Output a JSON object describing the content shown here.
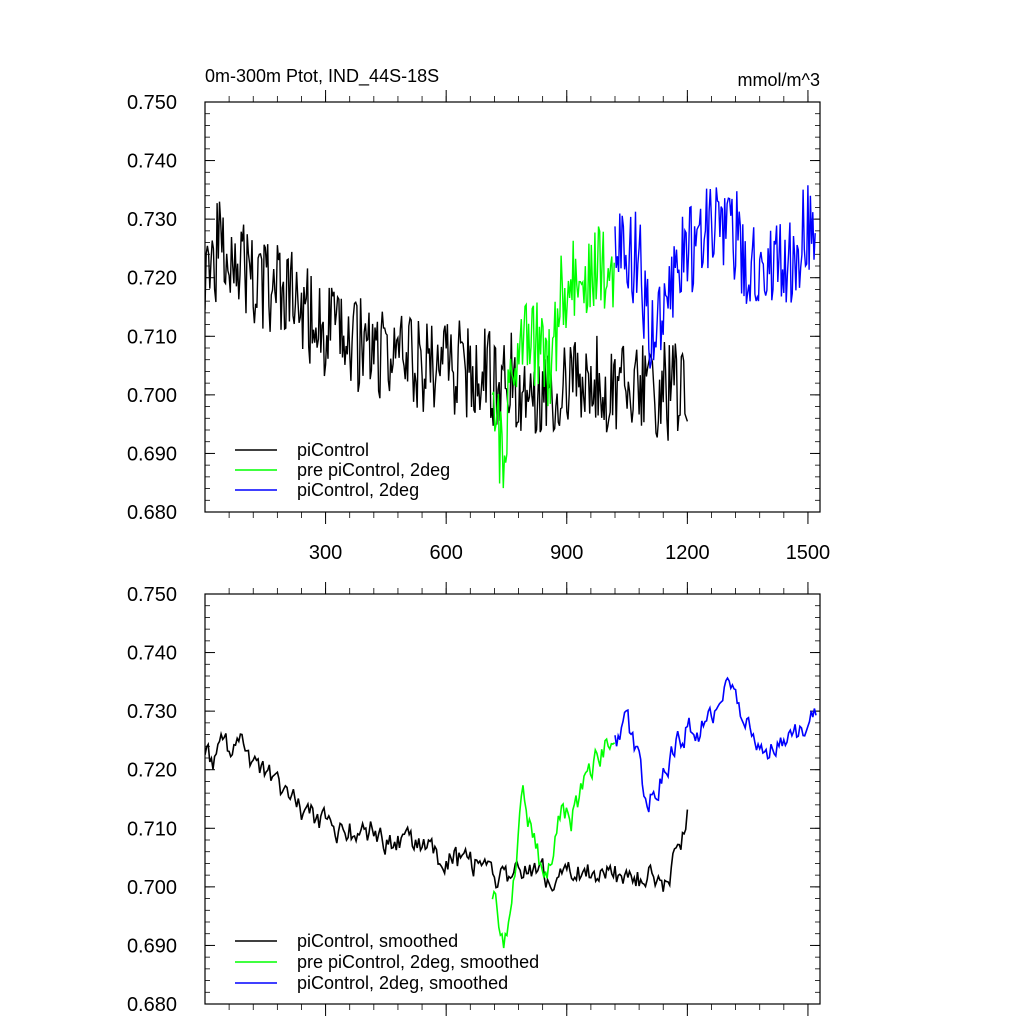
{
  "chart_data": [
    {
      "type": "line",
      "title": "0m-300m Ptot, IND_44S-18S",
      "units": "mmol/m^3",
      "xlim": [
        0,
        1530
      ],
      "ylim": [
        0.68,
        0.75
      ],
      "x_ticks": [
        300,
        600,
        900,
        1200,
        1500
      ],
      "y_ticks": [
        0.68,
        0.69,
        0.7,
        0.71,
        0.72,
        0.73,
        0.74,
        0.75
      ],
      "y_tick_labels": [
        "0.680",
        "0.690",
        "0.700",
        "0.710",
        "0.720",
        "0.730",
        "0.740",
        "0.750"
      ],
      "x_tick_labels": [
        "300",
        "600",
        "900",
        "1200",
        "1500"
      ],
      "legend": [
        "piControl",
        "pre piControl, 2deg",
        "piControl, 2deg"
      ],
      "legend_position": "bottom-left",
      "series": [
        {
          "name": "piControl",
          "color": "#000000",
          "x": [
            0,
            60,
            120,
            200,
            300,
            400,
            500,
            600,
            700,
            800,
            900,
            1000,
            1100,
            1200
          ],
          "y": [
            0.723,
            0.726,
            0.719,
            0.717,
            0.711,
            0.708,
            0.706,
            0.705,
            0.703,
            0.702,
            0.701,
            0.702,
            0.701,
            0.7
          ]
        },
        {
          "name": "pre piControl, 2deg",
          "color": "#00ff00",
          "x": [
            715,
            740,
            760,
            780,
            800,
            830,
            860,
            880,
            900,
            940,
            980,
            1020
          ],
          "y": [
            0.696,
            0.691,
            0.699,
            0.713,
            0.714,
            0.707,
            0.703,
            0.715,
            0.718,
            0.72,
            0.722,
            0.723
          ]
        },
        {
          "name": "piControl, 2deg",
          "color": "#0000ff",
          "x": [
            1020,
            1080,
            1100,
            1150,
            1200,
            1250,
            1300,
            1350,
            1400,
            1450,
            1500,
            1520
          ],
          "y": [
            0.723,
            0.724,
            0.712,
            0.718,
            0.725,
            0.728,
            0.73,
            0.722,
            0.724,
            0.723,
            0.728,
            0.731
          ]
        }
      ]
    },
    {
      "type": "line",
      "xlim": [
        0,
        1530
      ],
      "ylim": [
        0.68,
        0.75
      ],
      "y_ticks": [
        0.68,
        0.69,
        0.7,
        0.71,
        0.72,
        0.73,
        0.74,
        0.75
      ],
      "y_tick_labels": [
        "0.680",
        "0.690",
        "0.700",
        "0.710",
        "0.720",
        "0.730",
        "0.740",
        "0.750"
      ],
      "legend": [
        "piControl, smoothed",
        "pre piControl, 2deg, smoothed",
        "piControl, 2deg, smoothed"
      ],
      "legend_position": "bottom-left",
      "series": [
        {
          "name": "piControl, smoothed",
          "color": "#000000",
          "x": [
            0,
            20,
            40,
            60,
            80,
            100,
            150,
            200,
            250,
            300,
            350,
            400,
            450,
            500,
            550,
            600,
            650,
            700,
            750,
            800,
            850,
            900,
            950,
            1000,
            1050,
            1100,
            1150,
            1200
          ],
          "y": [
            0.724,
            0.721,
            0.727,
            0.724,
            0.726,
            0.722,
            0.719,
            0.716,
            0.712,
            0.711,
            0.709,
            0.71,
            0.708,
            0.708,
            0.706,
            0.705,
            0.704,
            0.703,
            0.701,
            0.703,
            0.702,
            0.702,
            0.703,
            0.703,
            0.701,
            0.702,
            0.7,
            0.712
          ]
        },
        {
          "name": "pre piControl, 2deg, smoothed",
          "color": "#00ff00",
          "x": [
            715,
            730,
            745,
            760,
            775,
            790,
            800,
            815,
            830,
            850,
            870,
            890,
            910,
            940,
            970,
            1000,
            1020
          ],
          "y": [
            0.699,
            0.695,
            0.691,
            0.694,
            0.705,
            0.715,
            0.713,
            0.709,
            0.705,
            0.701,
            0.708,
            0.714,
            0.711,
            0.717,
            0.721,
            0.725,
            0.726
          ]
        },
        {
          "name": "piControl, 2deg, smoothed",
          "color": "#0000ff",
          "x": [
            1020,
            1050,
            1080,
            1100,
            1130,
            1170,
            1200,
            1240,
            1280,
            1300,
            1330,
            1360,
            1400,
            1430,
            1460,
            1490,
            1520
          ],
          "y": [
            0.724,
            0.728,
            0.722,
            0.713,
            0.718,
            0.724,
            0.727,
            0.727,
            0.731,
            0.734,
            0.731,
            0.726,
            0.724,
            0.724,
            0.726,
            0.728,
            0.73
          ]
        }
      ]
    }
  ]
}
